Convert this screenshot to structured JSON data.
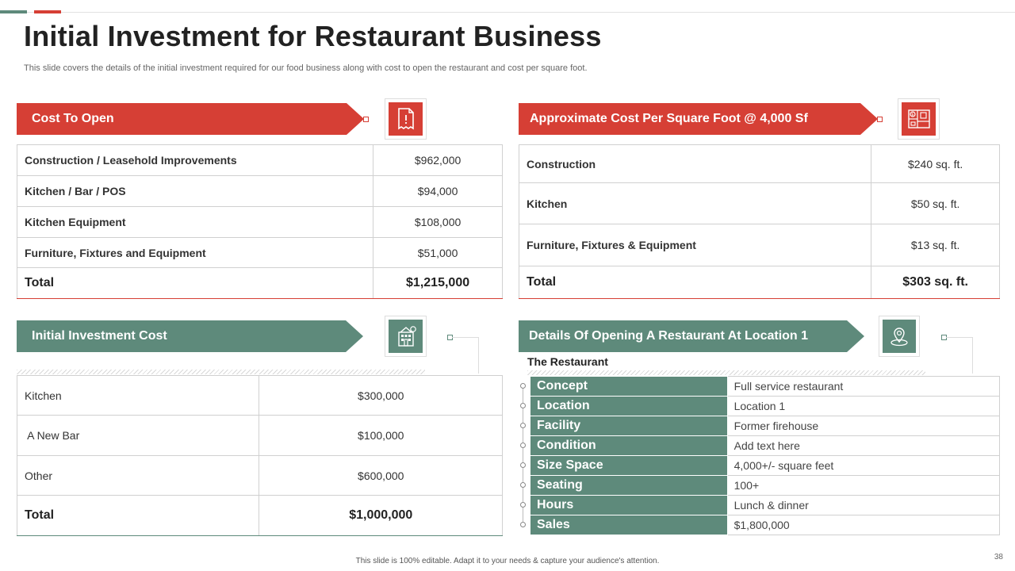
{
  "title": "Initial Investment for Restaurant Business",
  "subtitle": "This slide covers the details of the initial investment required for our food business along with cost to open the restaurant and cost per square foot.",
  "cost_to_open": {
    "heading": "Cost To Open",
    "rows": [
      {
        "label": "Construction / Leasehold Improvements",
        "value": "$962,000"
      },
      {
        "label": "Kitchen / Bar / POS",
        "value": "$94,000"
      },
      {
        "label": "Kitchen Equipment",
        "value": "$108,000"
      },
      {
        "label": "Furniture, Fixtures and Equipment",
        "value": "$51,000"
      }
    ],
    "total_label": "Total",
    "total_value": "$1,215,000"
  },
  "cost_per_sqft": {
    "heading": "Approximate Cost  Per Square Foot @ 4,000 Sf",
    "rows": [
      {
        "label": "Construction",
        "value": "$240 sq. ft."
      },
      {
        "label": "Kitchen",
        "value": "$50 sq. ft."
      },
      {
        "label": "Furniture, Fixtures & Equipment",
        "value": "$13 sq. ft."
      }
    ],
    "total_label": "Total",
    "total_value": "$303 sq. ft."
  },
  "initial_investment": {
    "heading": "Initial Investment  Cost",
    "rows": [
      {
        "label": "Kitchen",
        "value": "$300,000"
      },
      {
        "label": " A New Bar",
        "value": "$100,000"
      },
      {
        "label": "Other",
        "value": "$600,000"
      }
    ],
    "total_label": "Total",
    "total_value": "$1,000,000"
  },
  "location_details": {
    "heading": "Details Of Opening A Restaurant At Location 1",
    "subheading": "The Restaurant",
    "rows": [
      {
        "key": "Concept",
        "value": "Full service restaurant"
      },
      {
        "key": "Location",
        "value": "Location 1"
      },
      {
        "key": "Facility",
        "value": "Former firehouse"
      },
      {
        "key": "Condition",
        "value": "Add text here"
      },
      {
        "key": "Size Space",
        "value": "4,000+/- square feet"
      },
      {
        "key": "Seating",
        "value": "100+"
      },
      {
        "key": "Hours",
        "value": "Lunch & dinner"
      },
      {
        "key": "Sales",
        "value": "$1,800,000"
      }
    ]
  },
  "footer": "This slide is 100% editable.  Adapt it to your needs & capture your audience's attention.",
  "page_number": "38",
  "colors": {
    "accent_red": "#d63f35",
    "accent_green": "#5e8a7b"
  },
  "icons": [
    "receipt-icon",
    "blueprint-icon",
    "building-icon",
    "location-pin-icon"
  ]
}
